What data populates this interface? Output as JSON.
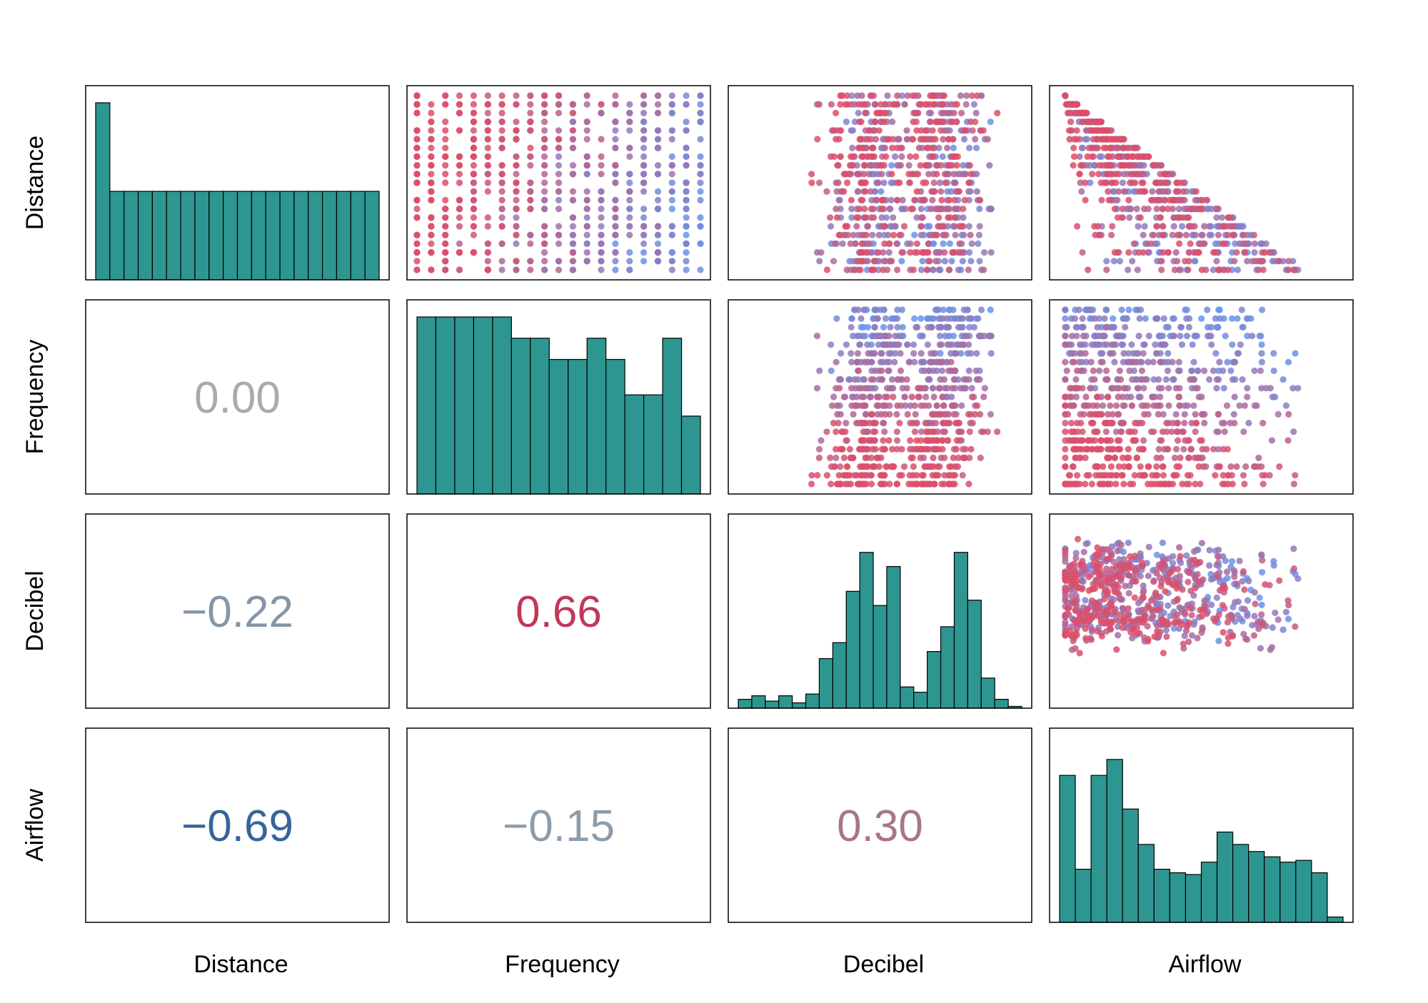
{
  "chart_data": {
    "type": "scatter-matrix",
    "variables": [
      "Distance",
      "Frequency",
      "Decibel",
      "Airflow"
    ],
    "point_colors": {
      "low": "#6495ED",
      "high": "#DC4F6A"
    },
    "histogram_color": "#2E9690",
    "correlations": [
      {
        "row": "Frequency",
        "col": "Distance",
        "label": "0.00",
        "value": 0.0,
        "color": "#AAAAAA"
      },
      {
        "row": "Decibel",
        "col": "Distance",
        "label": "−0.22",
        "value": -0.22,
        "color": "#8496A8"
      },
      {
        "row": "Decibel",
        "col": "Frequency",
        "label": "0.66",
        "value": 0.66,
        "color": "#C0385A"
      },
      {
        "row": "Airflow",
        "col": "Distance",
        "label": "−0.69",
        "value": -0.69,
        "color": "#37649A"
      },
      {
        "row": "Airflow",
        "col": "Frequency",
        "label": "−0.15",
        "value": -0.15,
        "color": "#8D9CAB"
      },
      {
        "row": "Airflow",
        "col": "Decibel",
        "label": "0.30",
        "value": 0.3,
        "color": "#A87585"
      }
    ],
    "histograms": {
      "Distance": [
        1.0,
        0.5,
        0.5,
        0.5,
        0.5,
        0.5,
        0.5,
        0.5,
        0.5,
        0.5,
        0.5,
        0.5,
        0.5,
        0.5,
        0.5,
        0.5,
        0.5,
        0.5,
        0.5,
        0.5
      ],
      "Frequency": [
        1.0,
        1.0,
        1.0,
        1.0,
        1.0,
        0.88,
        0.88,
        0.76,
        0.76,
        0.88,
        0.76,
        0.56,
        0.56,
        0.88,
        0.44
      ],
      "Decibel": [
        0.05,
        0.07,
        0.04,
        0.07,
        0.03,
        0.08,
        0.28,
        0.37,
        0.66,
        0.88,
        0.58,
        0.8,
        0.12,
        0.09,
        0.32,
        0.46,
        0.88,
        0.61,
        0.17,
        0.05,
        0.01
      ],
      "Airflow": [
        0.83,
        0.3,
        0.83,
        0.92,
        0.64,
        0.44,
        0.3,
        0.28,
        0.27,
        0.34,
        0.51,
        0.44,
        0.4,
        0.37,
        0.34,
        0.35,
        0.28,
        0.03
      ]
    }
  }
}
